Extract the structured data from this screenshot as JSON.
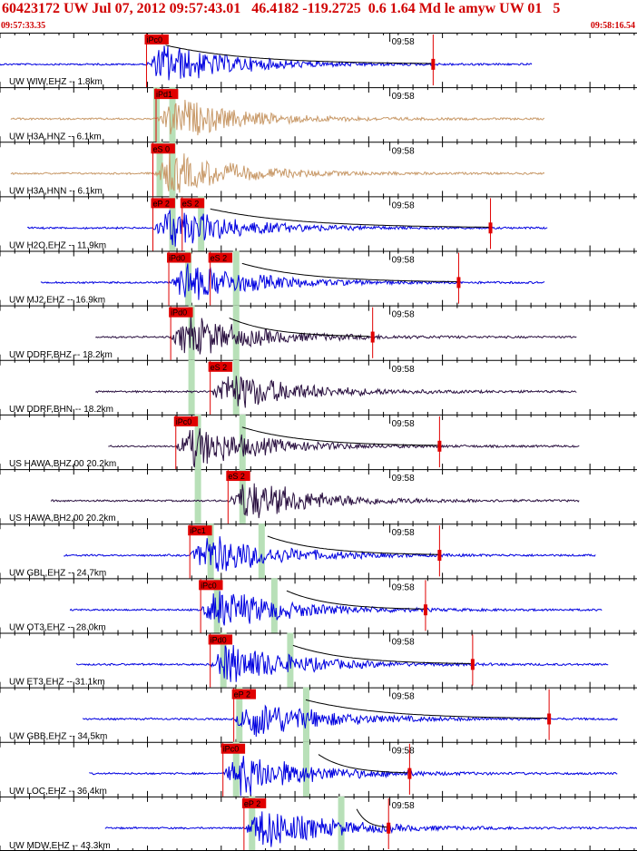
{
  "header": {
    "title": "60423172 UW Jul 07, 2012 09:57:43.01   46.4182 -119.2725  0.6 1.64 Md le amyw UW 01   5",
    "start_time": "09:57:33.35",
    "end_time": "09:58:16.54"
  },
  "colors": {
    "header_text": "#d00000",
    "ehz_trace": "#0000e0",
    "accel_trace": "#c89968",
    "broadband_trace": "#2a1040",
    "pick_box": "#e00000",
    "pick_window": "#b8e0b8",
    "coda_curve": "#000000"
  },
  "chart_data": {
    "type": "line",
    "description_type": "seismogram record section",
    "x_axis": {
      "range_seconds": [
        0,
        43.19
      ],
      "start": "09:57:33.35",
      "end": "09:58:16.54",
      "minute_label": "09:58"
    },
    "traces": [
      {
        "label": "UW WIW,EHZ -- 1.8km",
        "type": "ehz",
        "start": 0.0,
        "end": 0.835,
        "picks": [
          {
            "label": "iPc0",
            "t": 0.23
          },
          {
            "label": "",
            "t": 0.26,
            "window": true
          }
        ],
        "coda": [
          0.26,
          0.68
        ],
        "red_marker": 0.68
      },
      {
        "label": "UW H3A,HNZ -- 6.1km",
        "type": "accel",
        "start": 0.017,
        "end": 0.855,
        "picks": [
          {
            "label": "iPd1",
            "t": 0.245
          }
        ],
        "windows": [
          0.245,
          0.27
        ]
      },
      {
        "label": "UW H3A,HNN -- 6.1km",
        "type": "accel",
        "start": 0.017,
        "end": 0.855,
        "picks": [
          {
            "label": "eS 0",
            "t": 0.24
          }
        ],
        "windows": [
          0.25,
          0.27
        ]
      },
      {
        "label": "UW H2O,EHZ -- 11.9km",
        "type": "ehz",
        "start": 0.043,
        "end": 0.86,
        "picks": [
          {
            "label": "eP 2",
            "t": 0.24
          },
          {
            "label": "eS 2",
            "t": 0.286
          }
        ],
        "windows": [
          0.27,
          0.315
        ],
        "coda": [
          0.33,
          0.77
        ],
        "red_marker": 0.77
      },
      {
        "label": "UW MJ2,EHZ -- 16.9km",
        "type": "ehz",
        "start": 0.064,
        "end": 0.855,
        "picks": [
          {
            "label": "iPd0",
            "t": 0.265
          },
          {
            "label": "eS 2",
            "t": 0.33
          }
        ],
        "windows": [
          0.295,
          0.37
        ],
        "coda": [
          0.38,
          0.72
        ],
        "red_marker": 0.72
      },
      {
        "label": "UW DDRF,BHZ -- 18.2km",
        "type": "broadband",
        "start": 0.15,
        "end": 0.905,
        "picks": [
          {
            "label": "iPd0",
            "t": 0.268
          }
        ],
        "windows": [
          0.3,
          0.37
        ],
        "coda": [
          0.36,
          0.58
        ],
        "red_marker": 0.585
      },
      {
        "label": "UW DDRF,BHN -- 18.2km",
        "type": "broadband",
        "start": 0.15,
        "end": 0.905,
        "picks": [
          {
            "label": "eS 2",
            "t": 0.33
          }
        ],
        "windows": [
          0.3,
          0.37
        ]
      },
      {
        "label": "US HAWA,BHZ,00 20.2km",
        "type": "broadband",
        "start": 0.17,
        "end": 0.91,
        "picks": [
          {
            "label": "iPc0",
            "t": 0.276
          }
        ],
        "windows": [
          0.31,
          0.38
        ],
        "coda": [
          0.38,
          0.69
        ],
        "red_marker": 0.69
      },
      {
        "label": "US HAWA,BH2,00 20.2km",
        "type": "broadband",
        "start": 0.08,
        "end": 0.91,
        "picks": [
          {
            "label": "eS 2",
            "t": 0.358
          }
        ],
        "windows": [
          0.31,
          0.38
        ]
      },
      {
        "label": "UW GBL,EHZ -- 24.7km",
        "type": "ehz",
        "start": 0.1,
        "end": 0.935,
        "picks": [
          {
            "label": "iPc1",
            "t": 0.298
          }
        ],
        "windows": [
          0.33,
          0.41
        ],
        "coda": [
          0.42,
          0.69
        ],
        "red_marker": 0.69
      },
      {
        "label": "UW OT3,EHZ -- 28.0km",
        "type": "ehz",
        "start": 0.11,
        "end": 0.945,
        "picks": [
          {
            "label": "iPc0",
            "t": 0.315
          }
        ],
        "windows": [
          0.34,
          0.43
        ],
        "coda": [
          0.45,
          0.67
        ],
        "red_marker": 0.668
      },
      {
        "label": "UW ET3,EHZ -- 31.1km",
        "type": "ehz",
        "start": 0.12,
        "end": 0.955,
        "picks": [
          {
            "label": "iPd0",
            "t": 0.33
          }
        ],
        "windows": [
          0.35,
          0.455
        ],
        "coda": [
          0.46,
          0.74
        ],
        "red_marker": 0.742
      },
      {
        "label": "UW GBB,EHZ -- 34.5km",
        "type": "ehz",
        "start": 0.13,
        "end": 0.97,
        "picks": [
          {
            "label": "eP 2",
            "t": 0.367
          }
        ],
        "windows": [
          0.375,
          0.48
        ],
        "coda": [
          0.48,
          0.86
        ],
        "red_marker": 0.862
      },
      {
        "label": "UW LOC,EHZ -- 36.4km",
        "type": "ehz",
        "start": 0.14,
        "end": 0.97,
        "picks": [
          {
            "label": "iPc0",
            "t": 0.35
          }
        ],
        "windows": [
          0.37,
          0.48
        ],
        "coda": [
          0.5,
          0.64
        ],
        "red_marker": 0.643
      },
      {
        "label": "UW MDW,EHZ -- 43.3km",
        "type": "ehz",
        "start": 0.165,
        "end": 1.0,
        "picks": [
          {
            "label": "eP 2",
            "t": 0.383
          }
        ],
        "windows": [
          0.395,
          0.535
        ],
        "coda": [
          0.56,
          0.61
        ],
        "red_marker": 0.61
      }
    ]
  }
}
